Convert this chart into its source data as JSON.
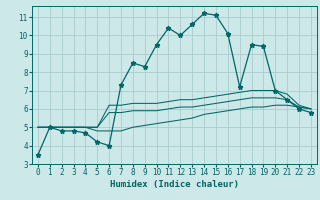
{
  "xlabel": "Humidex (Indice chaleur)",
  "bg_color": "#cce8e8",
  "grid_color": "#aacccc",
  "line_color": "#006666",
  "xlim": [
    -0.5,
    23.5
  ],
  "ylim": [
    3,
    11.6
  ],
  "xticks": [
    0,
    1,
    2,
    3,
    4,
    5,
    6,
    7,
    8,
    9,
    10,
    11,
    12,
    13,
    14,
    15,
    16,
    17,
    18,
    19,
    20,
    21,
    22,
    23
  ],
  "yticks": [
    3,
    4,
    5,
    6,
    7,
    8,
    9,
    10,
    11
  ],
  "line1_x": [
    0,
    1,
    2,
    3,
    4,
    5,
    6,
    7,
    8,
    9,
    10,
    11,
    12,
    13,
    14,
    15,
    16,
    17,
    18,
    19,
    20,
    21,
    22,
    23
  ],
  "line1_y": [
    3.5,
    5.0,
    4.8,
    4.8,
    4.7,
    4.2,
    4.0,
    7.3,
    8.5,
    8.3,
    9.5,
    10.4,
    10.0,
    10.6,
    11.2,
    11.1,
    10.1,
    7.2,
    9.5,
    9.4,
    7.0,
    6.5,
    6.0,
    5.8
  ],
  "line2_x": [
    0,
    1,
    2,
    3,
    4,
    5,
    6,
    7,
    8,
    9,
    10,
    11,
    12,
    13,
    14,
    15,
    16,
    17,
    18,
    19,
    20,
    21,
    22,
    23
  ],
  "line2_y": [
    5.0,
    5.0,
    5.0,
    5.0,
    5.0,
    4.8,
    4.8,
    4.8,
    5.0,
    5.1,
    5.2,
    5.3,
    5.4,
    5.5,
    5.7,
    5.8,
    5.9,
    6.0,
    6.1,
    6.1,
    6.2,
    6.2,
    6.1,
    6.0
  ],
  "line3_x": [
    0,
    1,
    2,
    3,
    4,
    5,
    6,
    7,
    8,
    9,
    10,
    11,
    12,
    13,
    14,
    15,
    16,
    17,
    18,
    19,
    20,
    21,
    22,
    23
  ],
  "line3_y": [
    5.0,
    5.0,
    5.0,
    5.0,
    5.0,
    5.0,
    6.2,
    6.2,
    6.3,
    6.3,
    6.3,
    6.4,
    6.5,
    6.5,
    6.6,
    6.7,
    6.8,
    6.9,
    7.0,
    7.0,
    7.0,
    6.8,
    6.2,
    6.0
  ],
  "line4_x": [
    0,
    1,
    2,
    3,
    4,
    5,
    6,
    7,
    8,
    9,
    10,
    11,
    12,
    13,
    14,
    15,
    16,
    17,
    18,
    19,
    20,
    21,
    22,
    23
  ],
  "line4_y": [
    5.0,
    5.0,
    5.0,
    5.0,
    5.0,
    5.0,
    5.8,
    5.8,
    5.9,
    5.9,
    5.9,
    6.0,
    6.1,
    6.1,
    6.2,
    6.3,
    6.4,
    6.5,
    6.6,
    6.6,
    6.6,
    6.5,
    6.1,
    6.0
  ]
}
